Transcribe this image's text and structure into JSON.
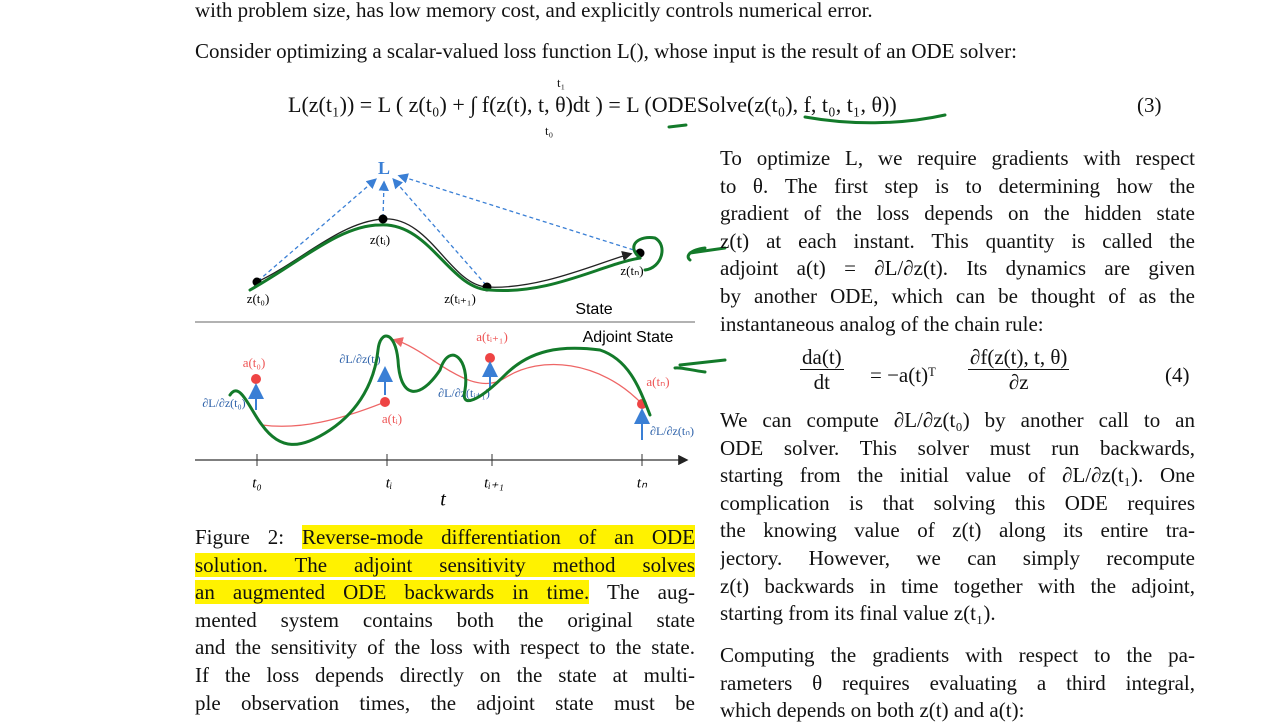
{
  "top_line": "with problem size, has low memory cost, and explicitly controls numerical error.",
  "intro": "Consider optimizing a scalar-valued loss function L(), whose input is the result of an ODE solver:",
  "equation_3": {
    "text": "L(z(t₁)) = L ( z(t₀) + ∫ f(z(t), t, θ)dt ) = L (ODESolve(z(t₀), f, t₀, t₁, θ))",
    "upper_limit": "t₁",
    "lower_limit": "t₀",
    "number": "(3)"
  },
  "figure": {
    "loss": "L",
    "state_points": [
      "z(t₀)",
      "z(tᵢ)",
      "z(tᵢ₊₁)",
      "z(tₙ)"
    ],
    "state_label": "State",
    "adjoint_label": "Adjoint State",
    "adjoint_points": [
      "a(t₀)",
      "a(tᵢ)",
      "a(tᵢ₊₁)",
      "a(tₙ)"
    ],
    "gradients": [
      "∂L/∂z(t₀)",
      "∂L/∂z(tᵢ)",
      "∂L/∂z(tᵢ₊₁)",
      "∂L/∂z(tₙ)"
    ],
    "axis_ticks": [
      "t₀",
      "tᵢ",
      "tᵢ₊₁",
      "tₙ"
    ],
    "axis_label": "t"
  },
  "caption": {
    "label": "Figure 2:",
    "highlighted": [
      "Reverse-mode differentiation of an ODE",
      "solution. The adjoint sensitivity method solves",
      "an augmented ODE backwards in time."
    ],
    "lines": [
      "The aug-",
      "mented system contains both the original state",
      "and the sensitivity of the loss with respect to the state.",
      "If the loss depends directly on the state at multi-",
      "ple observation times, the adjoint state must be"
    ]
  },
  "right_column": {
    "para1": [
      "To optimize L, we require gradients with respect",
      "to θ.  The first step is to determining how the",
      "gradient of the loss depends on the hidden state",
      "z(t) at each instant. This quantity is called the",
      "adjoint a(t) = ∂L/∂z(t). Its dynamics are given",
      "by another ODE, which can be thought of as the",
      "instantaneous analog of the chain rule:"
    ],
    "equation_4": {
      "lhs_num": "da(t)",
      "lhs_den": "dt",
      "middle": "= −a(t)ᵀ",
      "rhs_num": "∂f(z(t), t, θ)",
      "rhs_den": "∂z",
      "number": "(4)"
    },
    "para2": [
      "We can compute ∂L/∂z(t₀) by another call to an",
      "ODE solver.  This solver must run backwards,",
      "starting from the initial value of ∂L/∂z(t₁). One",
      "complication is that solving this ODE requires",
      "the knowing value of z(t) along its entire tra-",
      "jectory.  However, we can simply recompute",
      "z(t) backwards in time together with the adjoint,",
      "starting from its final value z(t₁)."
    ],
    "para3": [
      "Computing the gradients with respect to the pa-",
      "rameters θ requires evaluating a third integral,",
      "which depends on both z(t) and a(t):"
    ]
  }
}
